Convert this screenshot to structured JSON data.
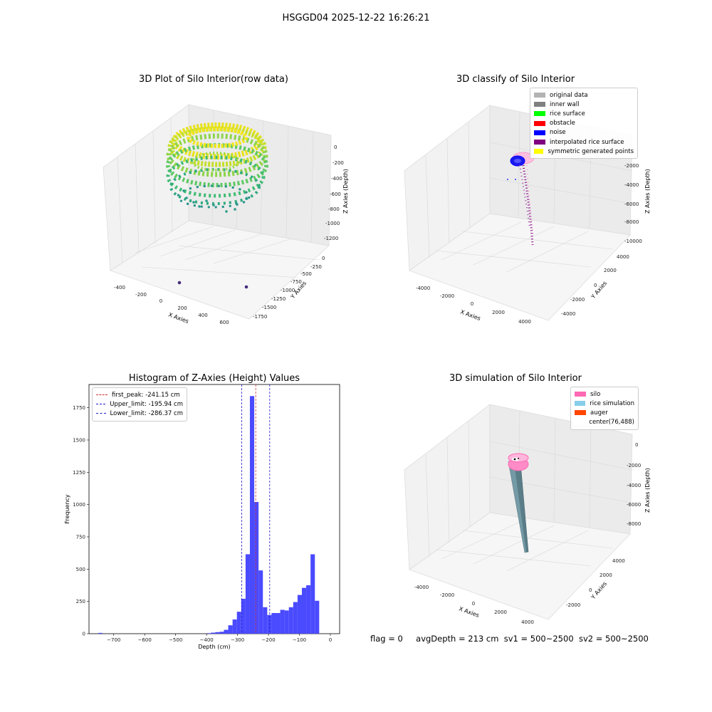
{
  "figure": {
    "suptitle": "HSGGD04 2025-12-22 16:26:21",
    "status": {
      "flag": "flag = 0",
      "avg_depth": "avgDepth = 213 cm",
      "sv1": "sv1 = 500~2500",
      "sv2": "sv2 = 500~2500"
    }
  },
  "chart_data": [
    {
      "type": "scatter",
      "title": "3D Plot of Silo Interior(row data)",
      "xlabel": "X Axies",
      "ylabel": "Y Axies",
      "zlabel": "Z Axies (Depth)",
      "x_ticks": [
        "-400",
        "-200",
        "0",
        "200",
        "400",
        "600"
      ],
      "y_ticks": [
        "0",
        "-250",
        "-500",
        "-750",
        "-1000",
        "-1250",
        "-1500",
        "-1750"
      ],
      "z_ticks": [
        "0",
        "-200",
        "-400",
        "-600",
        "-800",
        "-1000",
        "-1200"
      ],
      "colormap": [
        "#440154",
        "#31688e",
        "#35b779",
        "#fde725"
      ],
      "outliers": [
        {
          "x": 200,
          "y": -1000,
          "z": -1300
        },
        {
          "x": 620,
          "y": -1300,
          "z": -1300
        }
      ]
    },
    {
      "type": "scatter",
      "title": "3D classify of Silo Interior",
      "xlabel": "X Axies",
      "ylabel": "Y Axies",
      "zlabel": "Z Axies (Depth)",
      "x_ticks": [
        "-4000",
        "-2000",
        "0",
        "2000",
        "4000"
      ],
      "y_ticks": [
        "4000",
        "2000",
        "0",
        "-2000",
        "-4000"
      ],
      "z_ticks": [
        "-2000",
        "-4000",
        "-6000",
        "-8000",
        "-10000"
      ],
      "legend": [
        {
          "label": "original data",
          "color": "#b3b3b3"
        },
        {
          "label": "inner wall",
          "color": "#808080"
        },
        {
          "label": "rice surface",
          "color": "#00ff00"
        },
        {
          "label": "obstacle",
          "color": "#ff0000"
        },
        {
          "label": "noise",
          "color": "#0000ff"
        },
        {
          "label": "interpolated rice surface",
          "color": "#800080"
        },
        {
          "label": "symmetric generated points",
          "color": "#ffff00"
        }
      ]
    },
    {
      "type": "bar",
      "title": "Histogram of Z-Axies (Height) Values",
      "xlabel": "Depth (cm)",
      "ylabel": "Frequency",
      "xlim": [
        -780,
        30
      ],
      "ylim": [
        0,
        1930
      ],
      "x_ticks": [
        -700,
        -600,
        -500,
        -400,
        -300,
        -200,
        -100,
        0
      ],
      "y_ticks": [
        0,
        250,
        500,
        750,
        1000,
        1250,
        1500,
        1750
      ],
      "bin_width": 14,
      "bins": [
        {
          "x": -750,
          "value": 6
        },
        {
          "x": -400,
          "value": 4
        },
        {
          "x": -386,
          "value": 8
        },
        {
          "x": -372,
          "value": 12
        },
        {
          "x": -358,
          "value": 15
        },
        {
          "x": -344,
          "value": 30
        },
        {
          "x": -330,
          "value": 65
        },
        {
          "x": -316,
          "value": 110
        },
        {
          "x": -302,
          "value": 170
        },
        {
          "x": -288,
          "value": 270
        },
        {
          "x": -274,
          "value": 615
        },
        {
          "x": -260,
          "value": 1840
        },
        {
          "x": -246,
          "value": 1020
        },
        {
          "x": -232,
          "value": 490
        },
        {
          "x": -218,
          "value": 205
        },
        {
          "x": -204,
          "value": 145
        },
        {
          "x": -190,
          "value": 160
        },
        {
          "x": -176,
          "value": 160
        },
        {
          "x": -162,
          "value": 185
        },
        {
          "x": -148,
          "value": 180
        },
        {
          "x": -134,
          "value": 205
        },
        {
          "x": -120,
          "value": 245
        },
        {
          "x": -106,
          "value": 300
        },
        {
          "x": -92,
          "value": 355
        },
        {
          "x": -78,
          "value": 375
        },
        {
          "x": -64,
          "value": 615
        },
        {
          "x": -50,
          "value": 255
        }
      ],
      "bar_color": "#4a4aff",
      "vlines": [
        {
          "label": "first_peak: -241.15 cm",
          "x": -241.15,
          "color": "#cc3333"
        },
        {
          "label": "Upper_limit: -195.94 cm",
          "x": -195.94,
          "color": "#1a1acc"
        },
        {
          "label": "Lower_limit: -286.37 cm",
          "x": -286.37,
          "color": "#1a1acc"
        }
      ]
    },
    {
      "type": "area",
      "title": "3D simulation of Silo Interior",
      "xlabel": "X Axies",
      "ylabel": "Y Axies",
      "zlabel": "Z Axies (Depth)",
      "x_ticks": [
        "-4000",
        "-2000",
        "0",
        "2000",
        "4000"
      ],
      "y_ticks": [
        "4000",
        "2000",
        "0",
        "-2000"
      ],
      "z_ticks": [
        "0",
        "-2000",
        "-4000",
        "-6000",
        "-8000"
      ],
      "legend": [
        {
          "label": "silo",
          "color": "#ff69b4"
        },
        {
          "label": "rice simulation",
          "color": "#87ceeb"
        },
        {
          "label": "auger",
          "color": "#ff4500"
        },
        {
          "label": "center(76,488)",
          "color": "#ffffff"
        }
      ]
    }
  ]
}
